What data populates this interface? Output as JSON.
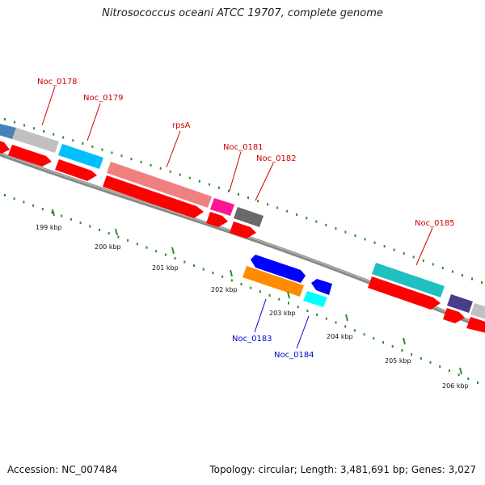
{
  "title": "Nitrosococcus oceani ATCC 19707, complete genome",
  "accession_text": "Accession: NC_007484",
  "topology_text": "Topology: circular; Length: 3,481,691 bp; Genes: 3,027",
  "colors": {
    "label_forward": "#cc0000",
    "label_reverse": "#0000cc",
    "cds_forward": "#ff0000",
    "cds_reverse": "#0000ff",
    "backbone": "#777777",
    "tick": "#2e8b2e"
  },
  "ruler_labels": [
    "199 kbp",
    "200 kbp",
    "201 kbp",
    "202 kbp",
    "203 kbp",
    "204 kbp",
    "205 kbp",
    "206 kbp"
  ],
  "gene_labels": [
    {
      "name": "Noc_0178",
      "strand": "forward"
    },
    {
      "name": "Noc_0179",
      "strand": "forward"
    },
    {
      "name": "rpsA",
      "strand": "forward"
    },
    {
      "name": "Noc_0181",
      "strand": "forward"
    },
    {
      "name": "Noc_0182",
      "strand": "forward"
    },
    {
      "name": "Noc_0185",
      "strand": "forward"
    },
    {
      "name": "Noc_0183",
      "strand": "reverse"
    },
    {
      "name": "Noc_0184",
      "strand": "reverse"
    }
  ]
}
